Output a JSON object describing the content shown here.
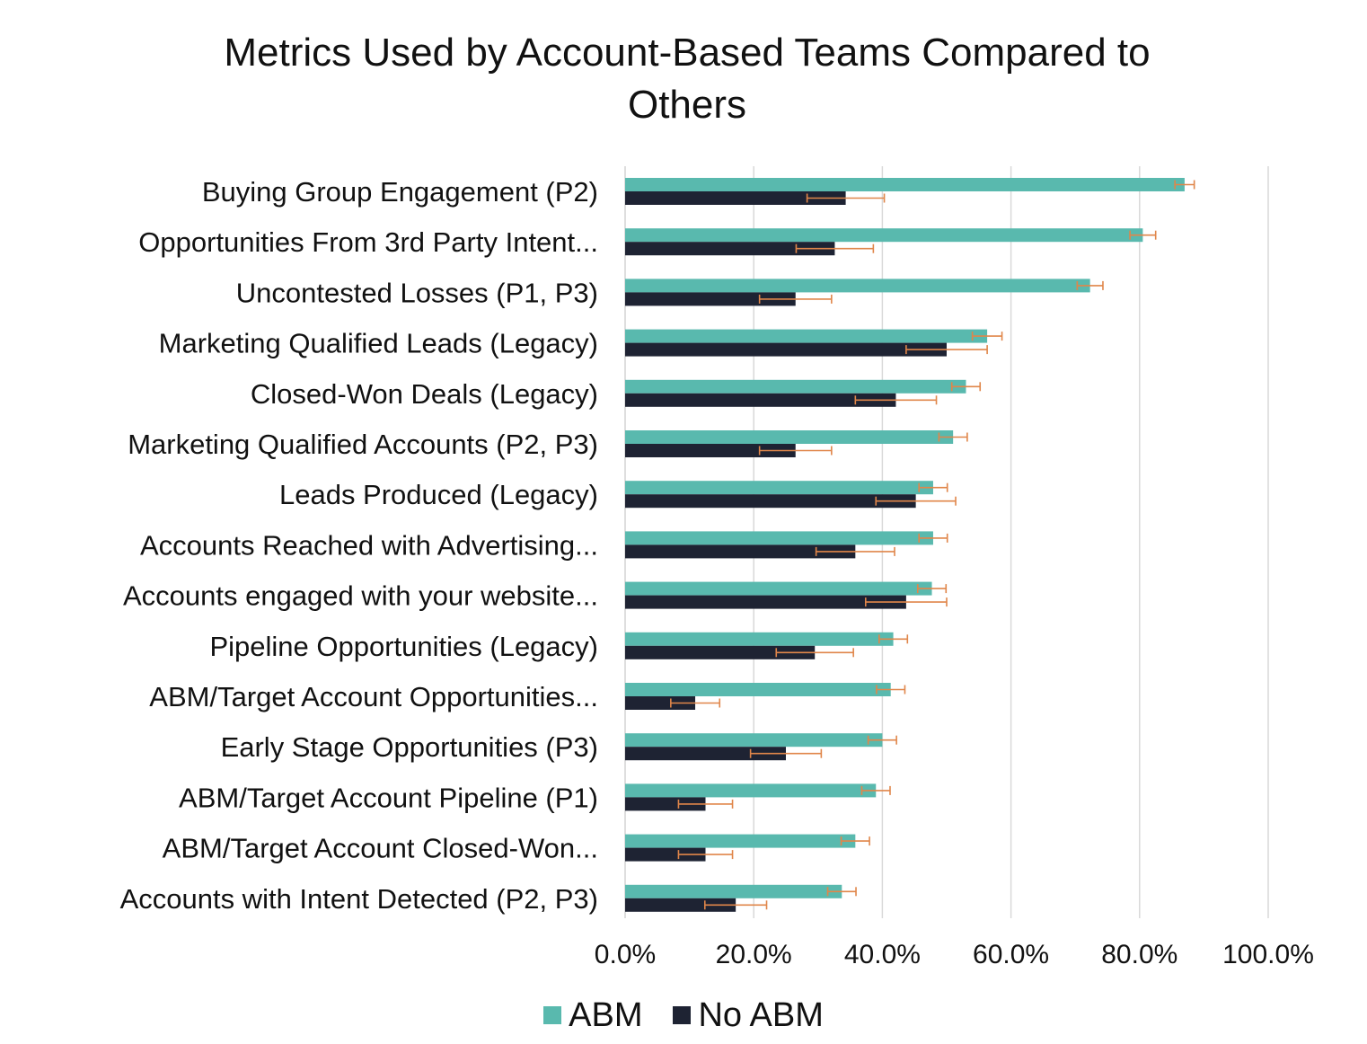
{
  "colors": {
    "abm": "#59b9ae",
    "no_abm": "#1e2333",
    "error_bar": "#e0864a",
    "grid": "#d9d9d9"
  },
  "chart_data": {
    "type": "bar",
    "orientation": "horizontal",
    "title_lines": [
      "Metrics Used by Account-Based Teams Compared to",
      "Others"
    ],
    "categories": [
      "Buying Group Engagement (P2)",
      "Opportunities From 3rd Party Intent...",
      "Uncontested Losses (P1, P3)",
      "Marketing Qualified Leads (Legacy)",
      "Closed-Won Deals (Legacy)",
      "Marketing Qualified Accounts (P2, P3)",
      "Leads Produced (Legacy)",
      "Accounts Reached with Advertising...",
      "Accounts engaged with your website...",
      "Pipeline Opportunities (Legacy)",
      "ABM/Target Account Opportunities...",
      "Early Stage Opportunities (P3)",
      "ABM/Target Account Pipeline (P1)",
      "ABM/Target Account Closed-Won...",
      "Accounts with Intent Detected (P2, P3)"
    ],
    "series": [
      {
        "name": "ABM",
        "values": [
          87.0,
          80.5,
          72.3,
          56.3,
          53.0,
          51.0,
          47.9,
          47.9,
          47.7,
          41.7,
          41.3,
          40.0,
          39.0,
          35.8,
          33.7
        ],
        "error": [
          1.5,
          2.0,
          2.0,
          2.3,
          2.2,
          2.2,
          2.2,
          2.2,
          2.2,
          2.2,
          2.2,
          2.2,
          2.2,
          2.2,
          2.2
        ]
      },
      {
        "name": "No ABM",
        "values": [
          34.3,
          32.6,
          26.5,
          50.0,
          42.1,
          26.5,
          45.2,
          35.8,
          43.7,
          29.5,
          10.9,
          25.0,
          12.5,
          12.5,
          17.2
        ],
        "error": [
          6.0,
          6.0,
          5.6,
          6.3,
          6.3,
          5.6,
          6.2,
          6.1,
          6.3,
          6.0,
          3.8,
          5.5,
          4.2,
          4.2,
          4.8
        ]
      }
    ],
    "x_ticks": [
      0,
      20,
      40,
      60,
      80,
      100
    ],
    "x_tick_labels": [
      "0.0%",
      "20.0%",
      "40.0%",
      "60.0%",
      "80.0%",
      "100.0%"
    ],
    "xlim": [
      0,
      100
    ],
    "xlabel": "",
    "ylabel": "",
    "grid": "vertical",
    "legend_position": "bottom-center"
  }
}
